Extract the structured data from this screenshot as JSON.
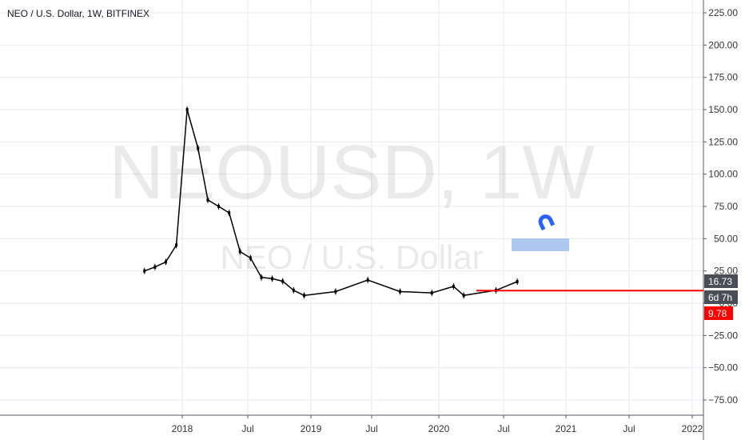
{
  "header": {
    "title": "NEO / U.S. Dollar, 1W, BITFINEX"
  },
  "watermark": {
    "symbol": "NEOUSD, 1W",
    "name": "NEO / U.S. Dollar"
  },
  "price_badges": {
    "current": {
      "label": "16.73",
      "color": "#4a4e57"
    },
    "countdown": {
      "label": "6d 7h",
      "color": "#4a4e57"
    },
    "line": {
      "label": "9.78",
      "color": "#ff0000"
    }
  },
  "icons": {
    "magnet": "magnet-icon"
  },
  "colors": {
    "accent": "#2962ff",
    "line": "#ff0000",
    "candle": "#000000",
    "highlight": "#aec8f0"
  },
  "chart_data": {
    "type": "candlestick",
    "title": "NEO / U.S. Dollar, 1W, BITFINEX",
    "y_axis_position": "right",
    "ylim": [
      -90,
      235
    ],
    "grid": true,
    "x_ticks": [
      "2018",
      "Jul",
      "2019",
      "Jul",
      "2020",
      "Jul",
      "2021",
      "Jul",
      "2022"
    ],
    "y_ticks": [
      "225.00",
      "200.00",
      "175.00",
      "150.00",
      "125.00",
      "100.00",
      "75.00",
      "50.00",
      "25.00",
      "0.00",
      "−25.00",
      "−50.00",
      "−75.00"
    ],
    "horizontal_line": {
      "value": 9.78,
      "label": "9.78"
    },
    "last_price": 16.73,
    "approx_close_series": [
      {
        "d": "2017-09",
        "v": 25
      },
      {
        "d": "2017-10",
        "v": 28
      },
      {
        "d": "2017-11",
        "v": 32
      },
      {
        "d": "2017-12",
        "v": 45
      },
      {
        "d": "2018-01",
        "v": 150
      },
      {
        "d": "2018-02",
        "v": 120
      },
      {
        "d": "2018-03",
        "v": 80
      },
      {
        "d": "2018-04",
        "v": 75
      },
      {
        "d": "2018-05",
        "v": 70
      },
      {
        "d": "2018-06",
        "v": 40
      },
      {
        "d": "2018-07",
        "v": 35
      },
      {
        "d": "2018-08",
        "v": 20
      },
      {
        "d": "2018-09",
        "v": 19
      },
      {
        "d": "2018-10",
        "v": 17
      },
      {
        "d": "2018-11",
        "v": 10
      },
      {
        "d": "2018-12",
        "v": 6
      },
      {
        "d": "2019-03",
        "v": 9
      },
      {
        "d": "2019-06",
        "v": 18
      },
      {
        "d": "2019-09",
        "v": 9
      },
      {
        "d": "2019-12",
        "v": 8
      },
      {
        "d": "2020-02",
        "v": 13
      },
      {
        "d": "2020-03",
        "v": 6
      },
      {
        "d": "2020-06",
        "v": 10
      },
      {
        "d": "2020-08",
        "v": 16.73
      }
    ]
  }
}
